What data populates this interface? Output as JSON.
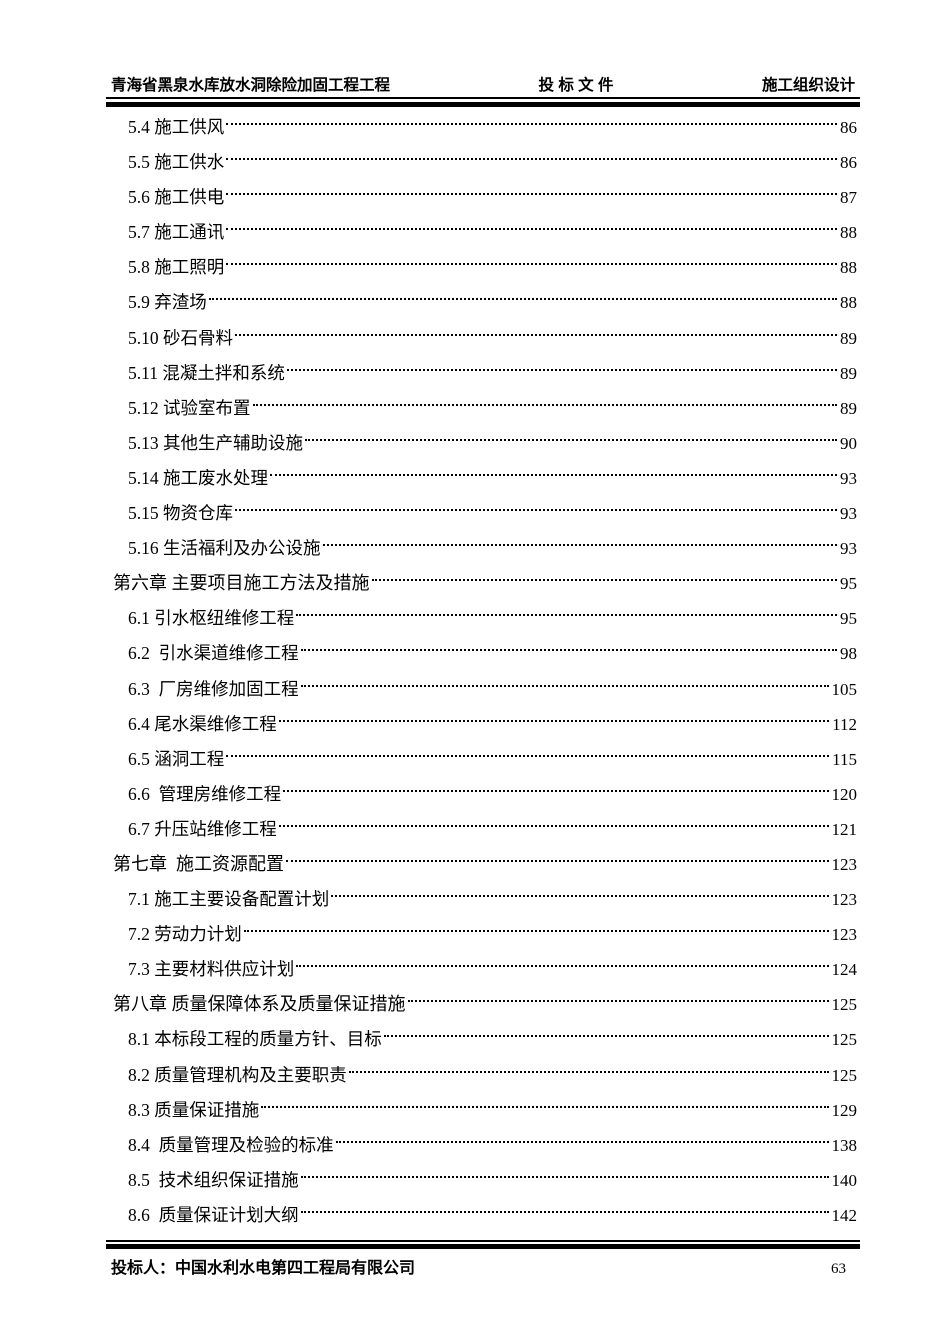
{
  "header": {
    "left": "青海省黑泉水库放水洞除险加固工程工程",
    "center": "投 标 文 件",
    "right": "施工组织设计"
  },
  "toc": {
    "entries": [
      {
        "level": "sub",
        "title": "5.4 施工供风",
        "page": "86"
      },
      {
        "level": "sub",
        "title": "5.5 施工供水",
        "page": "86"
      },
      {
        "level": "sub",
        "title": "5.6 施工供电",
        "page": "87"
      },
      {
        "level": "sub",
        "title": "5.7 施工通讯",
        "page": "88"
      },
      {
        "level": "sub",
        "title": "5.8 施工照明",
        "page": "88"
      },
      {
        "level": "sub",
        "title": "5.9 弃渣场",
        "page": "88"
      },
      {
        "level": "sub",
        "title": "5.10 砂石骨料",
        "page": "89"
      },
      {
        "level": "sub",
        "title": "5.11 混凝土拌和系统",
        "page": "89"
      },
      {
        "level": "sub",
        "title": "5.12 试验室布置",
        "page": "89"
      },
      {
        "level": "sub",
        "title": "5.13 其他生产辅助设施",
        "page": "90"
      },
      {
        "level": "sub",
        "title": "5.14 施工废水处理",
        "page": "93"
      },
      {
        "level": "sub",
        "title": "5.15 物资仓库",
        "page": "93"
      },
      {
        "level": "sub",
        "title": "5.16 生活福利及办公设施",
        "page": "93"
      },
      {
        "level": "chapter",
        "title": "第六章 主要项目施工方法及措施",
        "page": "95"
      },
      {
        "level": "sub",
        "title": "6.1 引水枢纽维修工程",
        "page": "95"
      },
      {
        "level": "sub",
        "title": "6.2  引水渠道维修工程",
        "page": "98"
      },
      {
        "level": "sub",
        "title": "6.3  厂房维修加固工程",
        "page": "105"
      },
      {
        "level": "sub",
        "title": "6.4 尾水渠维修工程",
        "page": "112"
      },
      {
        "level": "sub",
        "title": "6.5 涵洞工程",
        "page": "115"
      },
      {
        "level": "sub",
        "title": "6.6  管理房维修工程",
        "page": "120"
      },
      {
        "level": "sub",
        "title": "6.7 升压站维修工程",
        "page": "121"
      },
      {
        "level": "chapter",
        "title": "第七章  施工资源配置",
        "page": "123"
      },
      {
        "level": "sub",
        "title": "7.1 施工主要设备配置计划",
        "page": "123"
      },
      {
        "level": "sub",
        "title": "7.2 劳动力计划",
        "page": "123"
      },
      {
        "level": "sub",
        "title": "7.3 主要材料供应计划",
        "page": "124"
      },
      {
        "level": "chapter",
        "title": "第八章 质量保障体系及质量保证措施",
        "page": "125"
      },
      {
        "level": "sub",
        "title": "8.1 本标段工程的质量方针、目标",
        "page": "125"
      },
      {
        "level": "sub",
        "title": "8.2 质量管理机构及主要职责",
        "page": "125"
      },
      {
        "level": "sub",
        "title": "8.3 质量保证措施",
        "page": "129"
      },
      {
        "level": "sub",
        "title": "8.4  质量管理及检验的标准",
        "page": "138"
      },
      {
        "level": "sub",
        "title": "8.5  技术组织保证措施",
        "page": "140"
      },
      {
        "level": "sub",
        "title": "8.6  质量保证计划大纲",
        "page": "142"
      }
    ]
  },
  "footer": {
    "bidder": "投标人：中国水利水电第四工程局有限公司",
    "page_number": "63"
  }
}
